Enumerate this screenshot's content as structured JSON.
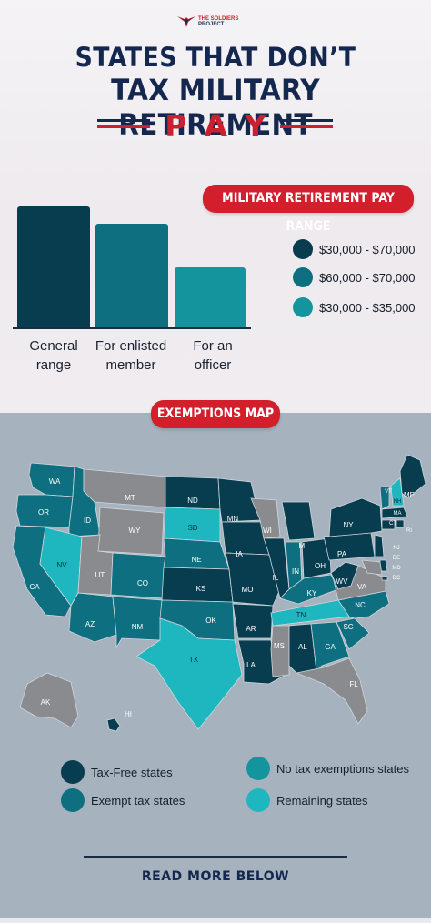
{
  "brand": {
    "line1": "THE SOLDIERS",
    "line2": "PROJECT"
  },
  "title": {
    "line1": "STATES THAT DON’T",
    "line2": "TAX MILITARY RETIREMENT",
    "line3": "PAY"
  },
  "colors": {
    "navy": "#13274f",
    "red": "#d21f2b",
    "dark_teal": "#073d4f",
    "mid_teal": "#0e6f80",
    "teal": "#14959e",
    "light_teal": "#1fb7bf",
    "gray": "#8a8b8e"
  },
  "pay_range_section": {
    "heading": "MILITARY RETIREMENT PAY RANGE",
    "chart_data": {
      "type": "bar",
      "categories": [
        "General range",
        "For enlisted member",
        "For an officer"
      ],
      "category_lines": [
        [
          "General",
          "range"
        ],
        [
          "For enlisted",
          "member"
        ],
        [
          "For an",
          "officer"
        ]
      ],
      "values": [
        70000,
        60000,
        35000
      ],
      "title": "MILITARY RETIREMENT PAY RANGE",
      "xlabel": "",
      "ylabel": "",
      "legend": [
        "$30,000 - $70,000",
        "$60,000 - $70,000",
        "$30,000 - $35,000"
      ],
      "colors": [
        "#073d4f",
        "#0e6f80",
        "#14959e"
      ],
      "ylim": [
        0,
        70000
      ],
      "grid": false,
      "legend_placement": "right"
    }
  },
  "exemptions_section": {
    "heading": "EXEMPTIONS MAP",
    "states": [
      {
        "abbr": "WA",
        "category": "exempt"
      },
      {
        "abbr": "OR",
        "category": "exempt"
      },
      {
        "abbr": "CA",
        "category": "exempt"
      },
      {
        "abbr": "ID",
        "category": "exempt"
      },
      {
        "abbr": "NV",
        "category": "remaining"
      },
      {
        "abbr": "MT",
        "category": "none"
      },
      {
        "abbr": "WY",
        "category": "none"
      },
      {
        "abbr": "UT",
        "category": "none"
      },
      {
        "abbr": "AZ",
        "category": "exempt"
      },
      {
        "abbr": "CO",
        "category": "exempt"
      },
      {
        "abbr": "NM",
        "category": "exempt"
      },
      {
        "abbr": "ND",
        "category": "taxfree"
      },
      {
        "abbr": "SD",
        "category": "remaining"
      },
      {
        "abbr": "NE",
        "category": "exempt"
      },
      {
        "abbr": "KS",
        "category": "taxfree"
      },
      {
        "abbr": "OK",
        "category": "exempt"
      },
      {
        "abbr": "TX",
        "category": "remaining"
      },
      {
        "abbr": "MN",
        "category": "taxfree"
      },
      {
        "abbr": "IA",
        "category": "taxfree"
      },
      {
        "abbr": "MO",
        "category": "taxfree"
      },
      {
        "abbr": "AR",
        "category": "taxfree"
      },
      {
        "abbr": "LA",
        "category": "taxfree"
      },
      {
        "abbr": "WI",
        "category": "none"
      },
      {
        "abbr": "IL",
        "category": "taxfree"
      },
      {
        "abbr": "MI",
        "category": "taxfree"
      },
      {
        "abbr": "IN",
        "category": "exempt"
      },
      {
        "abbr": "OH",
        "category": "taxfree"
      },
      {
        "abbr": "KY",
        "category": "exempt"
      },
      {
        "abbr": "TN",
        "category": "remaining"
      },
      {
        "abbr": "MS",
        "category": "none"
      },
      {
        "abbr": "AL",
        "category": "taxfree"
      },
      {
        "abbr": "GA",
        "category": "exempt"
      },
      {
        "abbr": "FL",
        "category": "none"
      },
      {
        "abbr": "SC",
        "category": "exempt"
      },
      {
        "abbr": "NC",
        "category": "exempt"
      },
      {
        "abbr": "VA",
        "category": "none"
      },
      {
        "abbr": "WV",
        "category": "taxfree"
      },
      {
        "abbr": "PA",
        "category": "taxfree"
      },
      {
        "abbr": "NY",
        "category": "taxfree"
      },
      {
        "abbr": "VT",
        "category": "exempt"
      },
      {
        "abbr": "NH",
        "category": "remaining"
      },
      {
        "abbr": "ME",
        "category": "taxfree"
      },
      {
        "abbr": "MA",
        "category": "taxfree"
      },
      {
        "abbr": "CT",
        "category": "taxfree"
      },
      {
        "abbr": "RI",
        "category": "taxfree"
      },
      {
        "abbr": "NJ",
        "category": "taxfree"
      },
      {
        "abbr": "DE",
        "category": "taxfree"
      },
      {
        "abbr": "MD",
        "category": "none"
      },
      {
        "abbr": "DC",
        "category": "taxfree"
      },
      {
        "abbr": "AK",
        "category": "none"
      },
      {
        "abbr": "HI",
        "category": "taxfree"
      }
    ],
    "legend": [
      {
        "label": "Tax-Free states",
        "color": "#073d4f"
      },
      {
        "label": "Exempt tax states",
        "color": "#0e6f80"
      },
      {
        "label": "No tax exemptions states",
        "color": "#14959e"
      },
      {
        "label": "Remaining states",
        "color": "#1fb7bf"
      }
    ]
  },
  "footer": {
    "read_more": "READ MORE BELOW"
  }
}
